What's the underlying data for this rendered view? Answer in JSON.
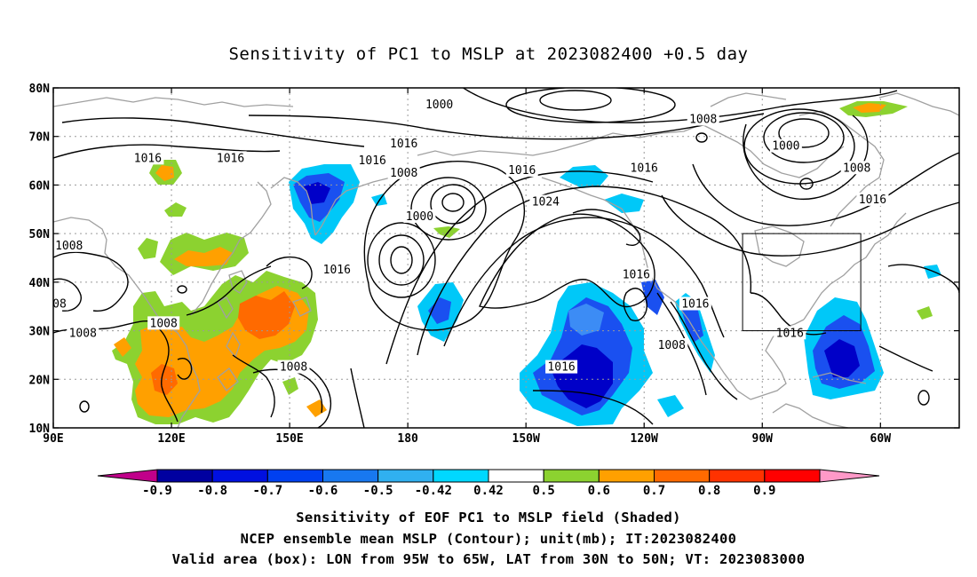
{
  "title": "Sensitivity of PC1 to MSLP at 2023082400 +0.5 day",
  "map": {
    "lat_labels": [
      "80N",
      "70N",
      "60N",
      "50N",
      "40N",
      "30N",
      "20N",
      "10N"
    ],
    "lon_labels": [
      "90E",
      "120E",
      "150E",
      "180",
      "150W",
      "120W",
      "90W",
      "60W"
    ],
    "extent": {
      "lon_min": 90,
      "lon_max": 320,
      "lat_min": 10,
      "lat_max": 80
    },
    "gridlines": "dotted",
    "valid_box": {
      "lon_w": -95,
      "lon_e": -65,
      "lat_s": 30,
      "lat_n": 50
    },
    "contour_labels": [
      {
        "text": "1000",
        "lon": -172,
        "lat": 76.5
      },
      {
        "text": "1008",
        "lon": -105,
        "lat": 73.5
      },
      {
        "text": "1016",
        "lon": 179,
        "lat": 68.5
      },
      {
        "text": "1016",
        "lon": 114,
        "lat": 65.5
      },
      {
        "text": "1016",
        "lon": 135,
        "lat": 65.5
      },
      {
        "text": "1016",
        "lon": 171,
        "lat": 65
      },
      {
        "text": "1008",
        "lon": 179,
        "lat": 62.5
      },
      {
        "text": "1016",
        "lon": -151,
        "lat": 63
      },
      {
        "text": "1016",
        "lon": -120,
        "lat": 63.5
      },
      {
        "text": "1000",
        "lon": -84,
        "lat": 68
      },
      {
        "text": "1008",
        "lon": -66,
        "lat": 63.5
      },
      {
        "text": "1024",
        "lon": -145,
        "lat": 56.5
      },
      {
        "text": "1000",
        "lon": -177,
        "lat": 53.5
      },
      {
        "text": "1016",
        "lon": -62,
        "lat": 57
      },
      {
        "text": "1008",
        "lon": 94,
        "lat": 47.5
      },
      {
        "text": "1016",
        "lon": 162,
        "lat": 42.5
      },
      {
        "text": "1016",
        "lon": -122,
        "lat": 41.5
      },
      {
        "text": "008",
        "lon": 90.7,
        "lat": 35.5
      },
      {
        "text": "1008",
        "lon": 118,
        "lat": 31.5
      },
      {
        "text": "1008",
        "lon": 97.5,
        "lat": 29.5
      },
      {
        "text": "1016",
        "lon": -107,
        "lat": 35.5
      },
      {
        "text": "1016",
        "lon": -83,
        "lat": 29.5
      },
      {
        "text": "1008",
        "lon": -113,
        "lat": 27
      },
      {
        "text": "1008",
        "lon": 151,
        "lat": 22.5
      },
      {
        "text": "1016",
        "lon": -141,
        "lat": 22.5
      }
    ]
  },
  "colorbar": {
    "labels": [
      "-0.9",
      "-0.8",
      "-0.7",
      "-0.6",
      "-0.5",
      "-0.42",
      "0.42",
      "0.5",
      "0.6",
      "0.7",
      "0.8",
      "0.9"
    ],
    "colors": [
      "#c0008a",
      "#0000a0",
      "#0010e0",
      "#0040f0",
      "#1878f0",
      "#30b0f0",
      "#00d8ff",
      "#ffffff",
      "#8cd230",
      "#ffa000",
      "#ff6a00",
      "#ff3200",
      "#ff0000",
      "#ff99c8"
    ]
  },
  "shading_colors": {
    "blue_dark": "#0000c8",
    "blue": "#1a50f0",
    "blue_light": "#3c8cf5",
    "cyan": "#00c8f8",
    "green": "#8cd230",
    "orange": "#ffa000",
    "orange_dark": "#ff6a00",
    "coast": "#a0a0a0"
  },
  "captions": [
    "Sensitivity of EOF PC1 to MSLP field (Shaded)",
    "NCEP ensemble mean MSLP (Contour); unit(mb); IT:2023082400",
    "Valid area (box): LON from 95W to 65W, LAT from 30N to 50N; VT: 2023083000"
  ]
}
